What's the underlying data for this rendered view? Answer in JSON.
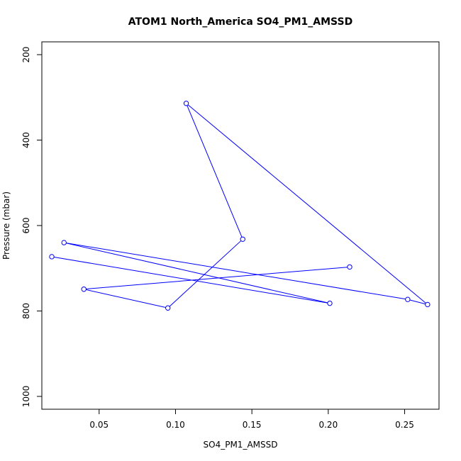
{
  "chart_data": {
    "type": "line",
    "title": "ATOM1 North_America SO4_PM1_AMSSD",
    "xlabel": "SO4_PM1_AMSSD",
    "ylabel": "Pressure (mbar)",
    "xlim": [
      0.0125,
      0.2725
    ],
    "ylim": [
      1030,
      170
    ],
    "y_reversed": true,
    "x_ticks": [
      0.05,
      0.1,
      0.15,
      0.2,
      0.25
    ],
    "x_tick_labels": [
      "0.05",
      "0.10",
      "0.15",
      "0.20",
      "0.25"
    ],
    "y_ticks": [
      200,
      400,
      600,
      800,
      1000
    ],
    "y_tick_labels": [
      "200",
      "400",
      "600",
      "800",
      "1000"
    ],
    "grid": false,
    "series": [
      {
        "color": "#0000ff",
        "marker": "open-circle",
        "x": [
          0.214,
          0.04,
          0.095,
          0.144,
          0.107,
          0.265,
          0.252,
          0.027,
          0.201,
          0.019
        ],
        "y": [
          697,
          749,
          793,
          632,
          314,
          785,
          773,
          640,
          782,
          673
        ]
      }
    ]
  }
}
